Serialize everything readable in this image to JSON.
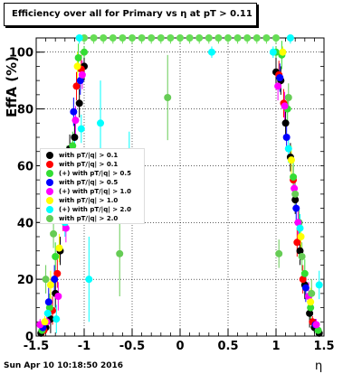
{
  "title": "Efficiency over all for Primary vs  η at pT > 0.11",
  "footer": "Sun Apr 10 10:18:50 2016",
  "chart_data": {
    "type": "scatter",
    "title": "Efficiency over all for Primary vs  η at pT > 0.11",
    "xlabel": "η",
    "ylabel": "EffA (%)",
    "xlim": [
      -1.5,
      1.5
    ],
    "ylim": [
      0,
      105
    ],
    "xticks": [
      "-1.5",
      "-1",
      "-0.5",
      "0",
      "0.5",
      "1",
      "1.5"
    ],
    "yticks": [
      "0",
      "20",
      "40",
      "60",
      "80",
      "100"
    ],
    "grid": true,
    "legend_placement": "left",
    "series": [
      {
        "name": "with pT/|q| > 0.1",
        "color": "#000000",
        "points": [
          [
            -1.45,
            1
          ],
          [
            -1.4,
            3
          ],
          [
            -1.35,
            6
          ],
          [
            -1.3,
            15
          ],
          [
            -1.25,
            30
          ],
          [
            -1.2,
            50
          ],
          [
            -1.15,
            66
          ],
          [
            -1.1,
            70
          ],
          [
            -1.05,
            82
          ],
          [
            -1.0,
            95
          ],
          [
            1.0,
            93
          ],
          [
            1.05,
            90
          ],
          [
            1.1,
            75
          ],
          [
            1.15,
            63
          ],
          [
            1.2,
            48
          ],
          [
            1.25,
            30
          ],
          [
            1.3,
            18
          ],
          [
            1.35,
            8
          ],
          [
            1.4,
            3
          ],
          [
            1.45,
            1
          ]
        ]
      },
      {
        "name": "with pT/|q| > 0.1",
        "color": "#ff0000",
        "points": [
          [
            -1.42,
            2
          ],
          [
            -1.33,
            9
          ],
          [
            -1.28,
            22
          ],
          [
            -1.22,
            42
          ],
          [
            -1.17,
            60
          ],
          [
            -1.08,
            88
          ],
          [
            -1.03,
            94
          ],
          [
            1.03,
            92
          ],
          [
            1.08,
            82
          ],
          [
            1.18,
            55
          ],
          [
            1.22,
            33
          ],
          [
            1.28,
            20
          ],
          [
            1.38,
            5
          ]
        ]
      },
      {
        "name": "(+) with pT/|q| > 0.5",
        "color": "#33dd33",
        "points": [
          [
            -1.44,
            2
          ],
          [
            -1.36,
            10
          ],
          [
            -1.3,
            28
          ],
          [
            -1.24,
            46
          ],
          [
            -1.18,
            62
          ],
          [
            -1.12,
            67
          ],
          [
            -1.06,
            98
          ],
          [
            -1.0,
            100
          ],
          [
            1.0,
            100
          ],
          [
            1.06,
            99
          ],
          [
            1.12,
            80
          ],
          [
            1.18,
            56
          ],
          [
            1.24,
            40
          ],
          [
            1.3,
            22
          ],
          [
            1.36,
            10
          ],
          [
            1.44,
            2
          ]
        ]
      },
      {
        "name": "with pT/|q| > 0.5",
        "color": "#0000ff",
        "points": [
          [
            -1.43,
            3
          ],
          [
            -1.37,
            12
          ],
          [
            -1.31,
            20
          ],
          [
            -1.21,
            52
          ],
          [
            -1.11,
            79
          ],
          [
            -1.04,
            90
          ],
          [
            1.04,
            91
          ],
          [
            1.11,
            70
          ],
          [
            1.21,
            45
          ],
          [
            1.31,
            17
          ],
          [
            1.41,
            4
          ]
        ]
      },
      {
        "name": "(+) with pT/|q| > 1.0",
        "color": "#ff00ff",
        "points": [
          [
            -1.46,
            4
          ],
          [
            -1.39,
            5
          ],
          [
            -1.27,
            14
          ],
          [
            -1.19,
            38
          ],
          [
            -1.09,
            76
          ],
          [
            -1.02,
            92
          ],
          [
            1.02,
            88
          ],
          [
            1.09,
            81
          ],
          [
            1.19,
            52
          ],
          [
            1.23,
            40
          ],
          [
            1.34,
            14
          ],
          [
            1.42,
            4
          ]
        ]
      },
      {
        "name": "with pT/|q| > 1.0",
        "color": "#ffff00",
        "points": [
          [
            -1.41,
            5
          ],
          [
            -1.35,
            18
          ],
          [
            -1.26,
            31
          ],
          [
            -1.16,
            52
          ],
          [
            -1.07,
            95
          ],
          [
            1.07,
            100
          ],
          [
            1.16,
            62
          ],
          [
            1.26,
            35
          ],
          [
            1.36,
            12
          ]
        ]
      },
      {
        "name": "(+) with pT/|q| > 2.0",
        "color": "#00ffff",
        "points": [
          [
            -1.38,
            8
          ],
          [
            -1.29,
            6
          ],
          [
            -1.2,
            40
          ],
          [
            -1.1,
            64
          ],
          [
            -1.03,
            73
          ],
          [
            -0.95,
            20
          ],
          [
            -0.83,
            75
          ],
          [
            -0.53,
            57
          ],
          [
            0.33,
            100
          ],
          [
            0.97,
            100
          ],
          [
            1.13,
            66
          ],
          [
            1.25,
            38
          ],
          [
            1.45,
            18
          ]
        ]
      },
      {
        "name": "with pT/|q| > 2.0",
        "color": "#66cc55",
        "points": [
          [
            -1.4,
            20
          ],
          [
            -1.32,
            36
          ],
          [
            -1.23,
            45
          ],
          [
            -1.14,
            62
          ],
          [
            -0.63,
            29
          ],
          [
            -0.13,
            84
          ],
          [
            1.03,
            29
          ],
          [
            1.13,
            84
          ],
          [
            1.2,
            50
          ],
          [
            1.27,
            28
          ],
          [
            1.37,
            15
          ]
        ]
      },
      {
        "name": "",
        "color": "#66dd55",
        "points": [
          [
            -1.0,
            105
          ],
          [
            -0.9,
            105
          ],
          [
            -0.8,
            105
          ],
          [
            -0.7,
            105
          ],
          [
            -0.6,
            105
          ],
          [
            -0.5,
            105
          ],
          [
            -0.4,
            105
          ],
          [
            -0.3,
            105
          ],
          [
            -0.2,
            105
          ],
          [
            -0.1,
            105
          ],
          [
            0.0,
            105
          ],
          [
            0.1,
            105
          ],
          [
            0.2,
            105
          ],
          [
            0.3,
            105
          ],
          [
            0.4,
            105
          ],
          [
            0.5,
            105
          ],
          [
            0.6,
            105
          ],
          [
            0.7,
            105
          ],
          [
            0.8,
            105
          ],
          [
            0.9,
            105
          ],
          [
            1.0,
            105
          ]
        ]
      },
      {
        "name": "",
        "color": "#00ffff",
        "points": [
          [
            -1.05,
            105
          ],
          [
            1.15,
            105
          ]
        ]
      }
    ]
  },
  "legend": [
    {
      "label": "with pT/|q| > 0.1",
      "color": "#000000"
    },
    {
      "label": "with pT/|q| > 0.1",
      "color": "#ff0000"
    },
    {
      "label": "(+) with pT/|q| > 0.5",
      "color": "#33dd33"
    },
    {
      "label": "with pT/|q| > 0.5",
      "color": "#0000ff"
    },
    {
      "label": "(+) with pT/|q| > 1.0",
      "color": "#ff00ff"
    },
    {
      "label": "with pT/|q| > 1.0",
      "color": "#ffff00"
    },
    {
      "label": "(+) with pT/|q| > 2.0",
      "color": "#00ffff"
    },
    {
      "label": "with pT/|q| > 2.0",
      "color": "#66cc55"
    }
  ]
}
